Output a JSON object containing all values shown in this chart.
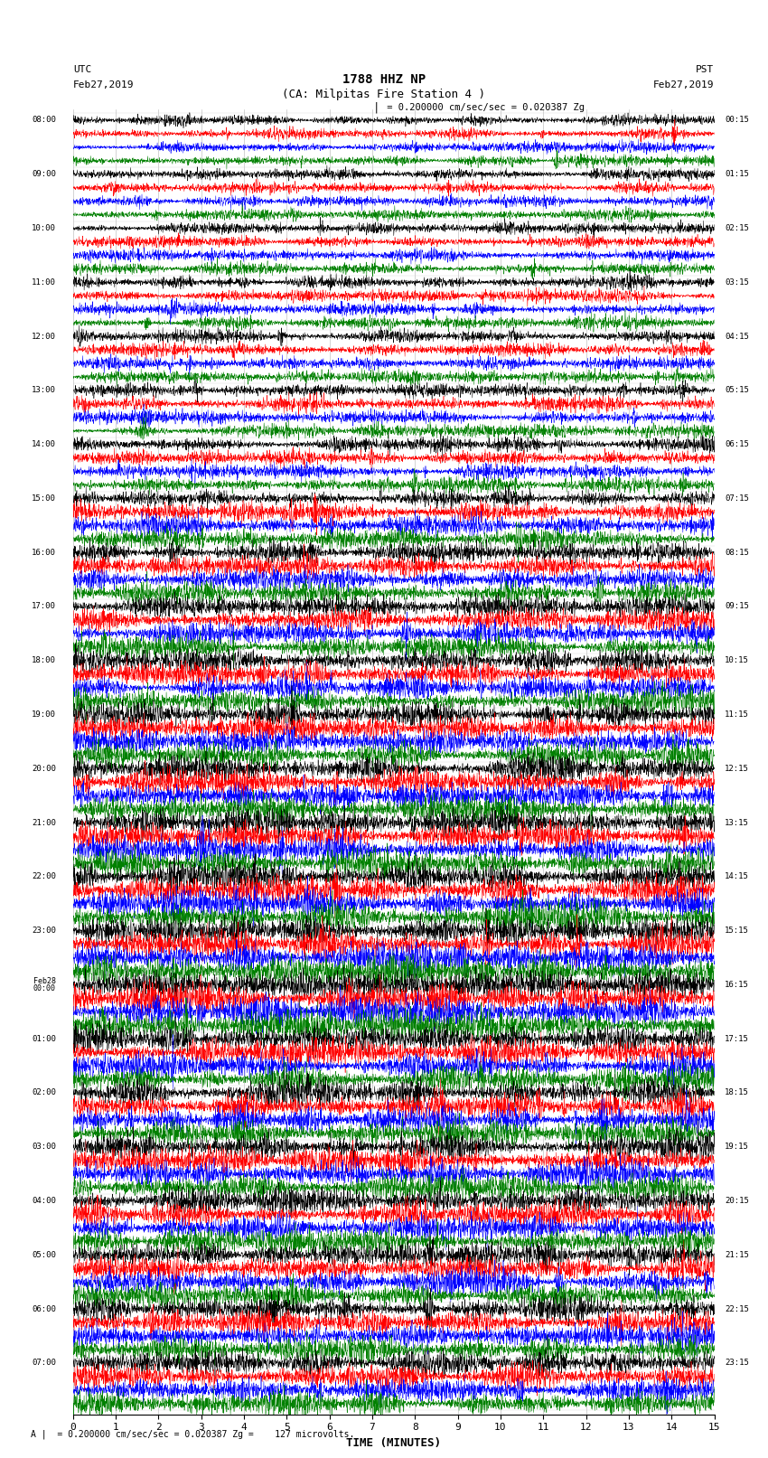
{
  "title_line1": "1788 HHZ NP",
  "title_line2": "(CA: Milpitas Fire Station 4 )",
  "scale_text": "= 0.200000 cm/sec/sec = 0.020387 Zg",
  "footer_text": "= 0.200000 cm/sec/sec = 0.020387 Zg =    127 microvolts.",
  "utc_label": "UTC",
  "pst_label": "PST",
  "date_left": "Feb27,2019",
  "date_right": "Feb27,2019",
  "xlabel": "TIME (MINUTES)",
  "left_times": [
    "08:00",
    "09:00",
    "10:00",
    "11:00",
    "12:00",
    "13:00",
    "14:00",
    "15:00",
    "16:00",
    "17:00",
    "18:00",
    "19:00",
    "20:00",
    "21:00",
    "22:00",
    "23:00",
    "Feb28\n00:00",
    "01:00",
    "02:00",
    "03:00",
    "04:00",
    "05:00",
    "06:00",
    "07:00"
  ],
  "right_times": [
    "00:15",
    "01:15",
    "02:15",
    "03:15",
    "04:15",
    "05:15",
    "06:15",
    "07:15",
    "08:15",
    "09:15",
    "10:15",
    "11:15",
    "12:15",
    "13:15",
    "14:15",
    "15:15",
    "16:15",
    "17:15",
    "18:15",
    "19:15",
    "20:15",
    "21:15",
    "22:15",
    "23:15"
  ],
  "colors_cycle": [
    "black",
    "red",
    "blue",
    "green"
  ],
  "num_rows": 96,
  "total_minutes": 15,
  "xmin": 0,
  "xmax": 15,
  "xticks": [
    0,
    1,
    2,
    3,
    4,
    5,
    6,
    7,
    8,
    9,
    10,
    11,
    12,
    13,
    14,
    15
  ],
  "bg_color": "white",
  "line_width": 0.35,
  "seed": 42,
  "amplitude_early": 0.28,
  "amplitude_mid": 0.55,
  "amplitude_late": 0.75,
  "npts": 2700
}
